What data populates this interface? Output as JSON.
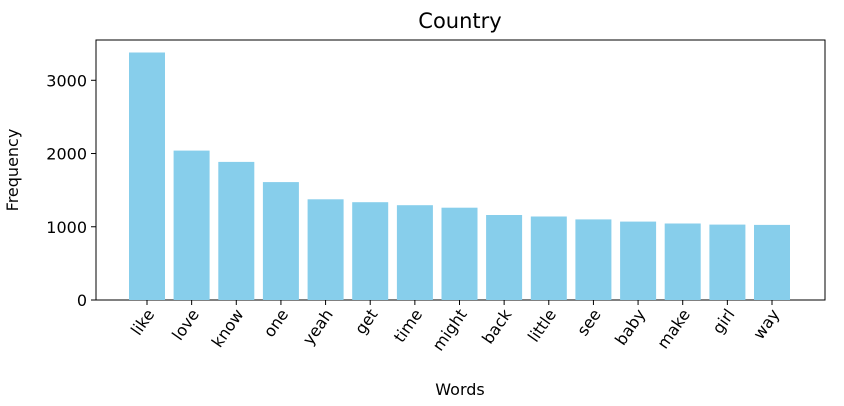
{
  "chart_data": {
    "type": "bar",
    "title": "Country",
    "xlabel": "Words",
    "ylabel": "Frequency",
    "categories": [
      "like",
      "love",
      "know",
      "one",
      "yeah",
      "get",
      "time",
      "might",
      "back",
      "little",
      "see",
      "baby",
      "make",
      "girl",
      "way"
    ],
    "values": [
      3380,
      2040,
      1885,
      1610,
      1375,
      1335,
      1295,
      1260,
      1160,
      1140,
      1100,
      1070,
      1045,
      1030,
      1025
    ],
    "yticks": [
      "0",
      "1000",
      "2000",
      "3000"
    ],
    "ylim": [
      0,
      3550
    ],
    "bar_color": "#87ceeb",
    "grid": false,
    "legend": "none"
  }
}
